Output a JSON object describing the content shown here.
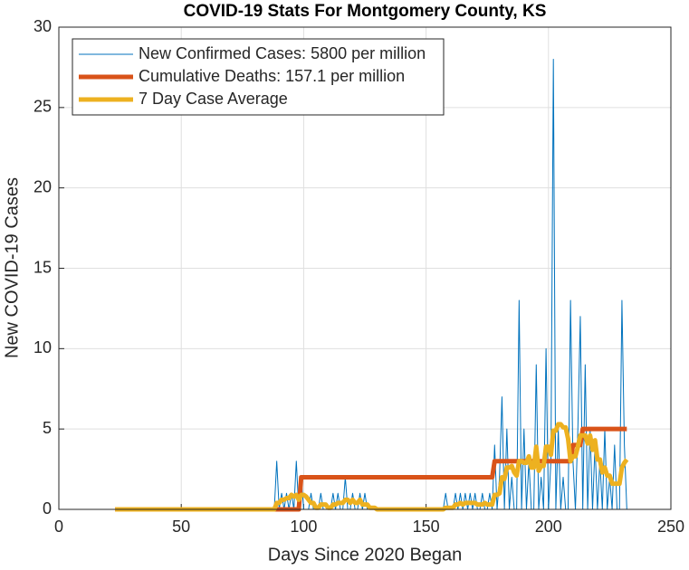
{
  "chart_data": {
    "type": "line",
    "title": "COVID-19 Stats For Montgomery County, KS",
    "xlabel": "Days Since 2020 Began",
    "ylabel": "New COVID-19 Cases",
    "xlim": [
      0,
      250
    ],
    "xticks": [
      0,
      50,
      100,
      150,
      200,
      250
    ],
    "ylim": [
      0,
      30
    ],
    "yticks": [
      0,
      5,
      10,
      15,
      20,
      25,
      30
    ],
    "grid": true,
    "legend": "northwest",
    "x": [
      23,
      24,
      25,
      26,
      27,
      28,
      29,
      30,
      31,
      32,
      33,
      34,
      35,
      36,
      37,
      38,
      39,
      40,
      41,
      42,
      43,
      44,
      45,
      46,
      47,
      48,
      49,
      50,
      51,
      52,
      53,
      54,
      55,
      56,
      57,
      58,
      59,
      60,
      61,
      62,
      63,
      64,
      65,
      66,
      67,
      68,
      69,
      70,
      71,
      72,
      73,
      74,
      75,
      76,
      77,
      78,
      79,
      80,
      81,
      82,
      83,
      84,
      85,
      86,
      87,
      88,
      89,
      90,
      91,
      92,
      93,
      94,
      95,
      96,
      97,
      98,
      99,
      100,
      101,
      102,
      103,
      104,
      105,
      106,
      107,
      108,
      109,
      110,
      111,
      112,
      113,
      114,
      115,
      116,
      117,
      118,
      119,
      120,
      121,
      122,
      123,
      124,
      125,
      126,
      127,
      128,
      129,
      130,
      131,
      132,
      133,
      134,
      135,
      136,
      137,
      138,
      139,
      140,
      141,
      142,
      143,
      144,
      145,
      146,
      147,
      148,
      149,
      150,
      151,
      152,
      153,
      154,
      155,
      156,
      157,
      158,
      159,
      160,
      161,
      162,
      163,
      164,
      165,
      166,
      167,
      168,
      169,
      170,
      171,
      172,
      173,
      174,
      175,
      176,
      177,
      178,
      179,
      180,
      181,
      182,
      183,
      184,
      185,
      186,
      187,
      188,
      189,
      190,
      191,
      192,
      193,
      194,
      195,
      196,
      197,
      198,
      199,
      200,
      201,
      202,
      203,
      204,
      205,
      206,
      207,
      208,
      209,
      210,
      211,
      212,
      213,
      214,
      215,
      216,
      217,
      218,
      219,
      220,
      221,
      222,
      223,
      224,
      225,
      226,
      227,
      228,
      229,
      230,
      231,
      232
    ],
    "series": [
      {
        "name": "New Confirmed Cases: 5800 per million",
        "color": "#0072BD",
        "width": 1,
        "values": [
          0,
          0,
          0,
          0,
          0,
          0,
          0,
          0,
          0,
          0,
          0,
          0,
          0,
          0,
          0,
          0,
          0,
          0,
          0,
          0,
          0,
          0,
          0,
          0,
          0,
          0,
          0,
          0,
          0,
          0,
          0,
          0,
          0,
          0,
          0,
          0,
          0,
          0,
          0,
          0,
          0,
          0,
          0,
          0,
          0,
          0,
          0,
          0,
          0,
          0,
          0,
          0,
          0,
          0,
          0,
          0,
          0,
          0,
          0,
          0,
          0,
          0,
          0,
          0,
          0,
          0,
          3,
          0,
          1,
          0,
          1,
          0,
          1,
          0,
          3,
          0,
          2,
          0,
          0,
          0,
          1,
          0,
          0,
          0,
          1,
          0,
          0,
          0,
          0,
          1,
          0,
          1,
          0,
          0,
          2,
          0,
          0,
          1,
          0,
          0,
          1,
          0,
          1,
          0,
          0,
          0,
          0,
          0,
          0,
          0,
          0,
          0,
          0,
          0,
          0,
          0,
          0,
          0,
          0,
          0,
          0,
          0,
          0,
          0,
          0,
          0,
          0,
          0,
          0,
          0,
          0,
          0,
          0,
          0,
          0,
          1,
          0,
          0,
          0,
          1,
          0,
          1,
          0,
          1,
          0,
          1,
          0,
          1,
          0,
          0,
          1,
          0,
          0,
          1,
          0,
          4,
          0,
          2,
          7,
          0,
          5,
          0,
          2,
          0,
          0,
          13,
          0,
          5,
          0,
          3,
          0,
          0,
          9,
          0,
          2,
          0,
          10,
          0,
          3,
          28,
          0,
          5,
          0,
          2,
          0,
          0,
          13,
          3,
          0,
          5,
          12,
          0,
          9,
          0,
          5,
          0,
          4,
          0,
          3,
          0,
          5,
          0,
          2,
          0,
          4,
          0,
          0,
          13,
          4,
          0
        ]
      },
      {
        "name": "Cumulative Deaths: 157.1 per million",
        "color": "#D95319",
        "width": 5,
        "values": [
          0,
          0,
          0,
          0,
          0,
          0,
          0,
          0,
          0,
          0,
          0,
          0,
          0,
          0,
          0,
          0,
          0,
          0,
          0,
          0,
          0,
          0,
          0,
          0,
          0,
          0,
          0,
          0,
          0,
          0,
          0,
          0,
          0,
          0,
          0,
          0,
          0,
          0,
          0,
          0,
          0,
          0,
          0,
          0,
          0,
          0,
          0,
          0,
          0,
          0,
          0,
          0,
          0,
          0,
          0,
          0,
          0,
          0,
          0,
          0,
          0,
          0,
          0,
          0,
          0,
          0,
          0,
          0,
          0,
          0,
          0,
          0,
          0,
          0,
          0,
          0,
          2,
          2,
          2,
          2,
          2,
          2,
          2,
          2,
          2,
          2,
          2,
          2,
          2,
          2,
          2,
          2,
          2,
          2,
          2,
          2,
          2,
          2,
          2,
          2,
          2,
          2,
          2,
          2,
          2,
          2,
          2,
          2,
          2,
          2,
          2,
          2,
          2,
          2,
          2,
          2,
          2,
          2,
          2,
          2,
          2,
          2,
          2,
          2,
          2,
          2,
          2,
          2,
          2,
          2,
          2,
          2,
          2,
          2,
          2,
          2,
          2,
          2,
          2,
          2,
          2,
          2,
          2,
          2,
          2,
          2,
          2,
          2,
          2,
          2,
          2,
          2,
          2,
          2,
          2,
          3,
          3,
          3,
          3,
          3,
          3,
          3,
          3,
          3,
          3,
          3,
          3,
          3,
          3,
          3,
          3,
          3,
          3,
          3,
          3,
          3,
          3,
          3,
          3,
          3,
          3,
          3,
          3,
          3,
          3,
          3,
          3,
          4,
          4,
          4,
          4,
          5,
          5,
          5,
          5,
          5,
          5,
          5,
          5,
          5,
          5,
          5,
          5,
          5,
          5,
          5,
          5,
          5,
          5,
          5
        ]
      },
      {
        "name": "7 Day Case Average",
        "color": "#EDB120",
        "width": 5,
        "values": [
          0,
          0,
          0,
          0,
          0,
          0,
          0,
          0,
          0,
          0,
          0,
          0,
          0,
          0,
          0,
          0,
          0,
          0,
          0,
          0,
          0,
          0,
          0,
          0,
          0,
          0,
          0,
          0,
          0,
          0,
          0,
          0,
          0,
          0,
          0,
          0,
          0,
          0,
          0,
          0,
          0,
          0,
          0,
          0,
          0,
          0,
          0,
          0,
          0,
          0,
          0,
          0,
          0,
          0,
          0,
          0,
          0,
          0,
          0,
          0,
          0,
          0,
          0,
          0,
          0,
          0,
          0.4,
          0.4,
          0.6,
          0.6,
          0.7,
          0.7,
          0.9,
          0.8,
          0.9,
          0.6,
          0.9,
          0.9,
          0.8,
          0.6,
          0.4,
          0.4,
          0.1,
          0.1,
          0.3,
          0.3,
          0.3,
          0.1,
          0.1,
          0.3,
          0.3,
          0.4,
          0.4,
          0.4,
          0.6,
          0.6,
          0.4,
          0.6,
          0.4,
          0.4,
          0.6,
          0.3,
          0.3,
          0.3,
          0.1,
          0.1,
          0.1,
          0,
          0,
          0,
          0,
          0,
          0,
          0,
          0,
          0,
          0,
          0,
          0,
          0,
          0,
          0,
          0,
          0,
          0,
          0,
          0,
          0,
          0,
          0,
          0,
          0,
          0,
          0,
          0,
          0.1,
          0.1,
          0.1,
          0.1,
          0.3,
          0.3,
          0.4,
          0.3,
          0.4,
          0.4,
          0.4,
          0.4,
          0.4,
          0.3,
          0.3,
          0.3,
          0.4,
          0.3,
          0.3,
          0.3,
          0.9,
          0.9,
          1.0,
          2.0,
          1.9,
          2.6,
          2.6,
          2.7,
          2.3,
          2.1,
          3.0,
          3.0,
          2.9,
          2.9,
          3.3,
          2.6,
          2.6,
          3.9,
          2.4,
          2.7,
          2.7,
          3.9,
          3.9,
          3.4,
          4.9,
          4.9,
          5.3,
          5.3,
          5.1,
          5.1,
          4.4,
          3.0,
          3.3,
          3.3,
          3.9,
          4.6,
          4.6,
          4.6,
          4.1,
          4.6,
          3.7,
          4.3,
          3.1,
          3.1,
          2.3,
          2.6,
          2.1,
          2.1,
          1.6,
          1.6,
          1.6,
          1.6,
          2.6,
          2.9,
          3.1
        ]
      }
    ]
  }
}
